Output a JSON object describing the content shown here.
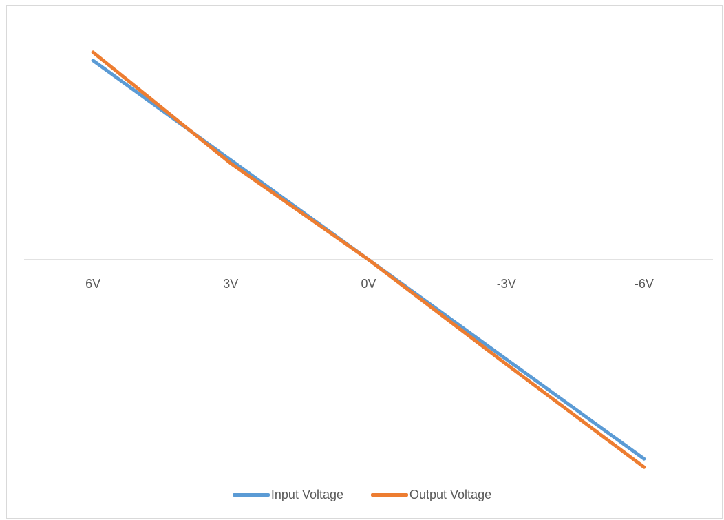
{
  "chart_data": {
    "type": "line",
    "title": "",
    "xlabel": "",
    "ylabel": "",
    "categories": [
      "6V",
      "3V",
      "0V",
      "-3V",
      "-6V"
    ],
    "series": [
      {
        "name": "Input Voltage",
        "values": [
          6,
          3,
          0,
          -3,
          -6
        ],
        "color": "#5B9BD5"
      },
      {
        "name": "Output Voltage",
        "values": [
          6.25,
          2.9,
          0,
          -3.15,
          -6.25
        ],
        "color": "#ED7D31"
      }
    ],
    "ylim": [
      -6.5,
      6.5
    ],
    "grid": false,
    "legend": "bottom",
    "colors": {
      "axis": "#d9d9d9",
      "text": "#595959",
      "border": "#d9d9d9"
    }
  }
}
